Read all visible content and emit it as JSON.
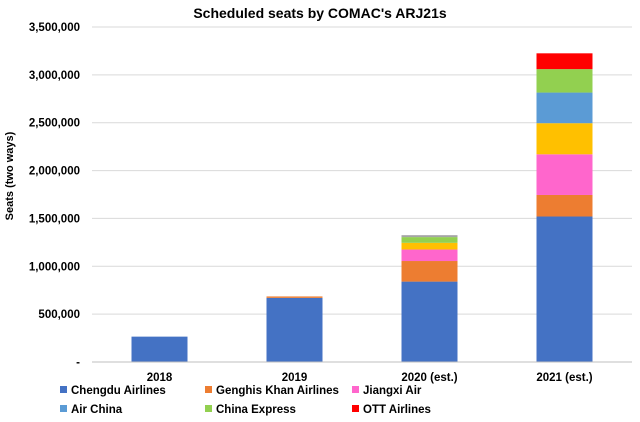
{
  "chart_data": {
    "type": "bar",
    "stacked": true,
    "title": "Scheduled seats by COMAC's ARJ21s",
    "xlabel": "",
    "ylabel": "Seats (two ways)",
    "ylim": [
      0,
      3500000
    ],
    "yticks": [
      0,
      500000,
      1000000,
      1500000,
      2000000,
      2500000,
      3000000,
      3500000
    ],
    "ytick_labels": [
      "-",
      "500,000",
      "1,000,000",
      "1,500,000",
      "2,000,000",
      "2,500,000",
      "3,000,000",
      "3,500,000"
    ],
    "grid": true,
    "legend_position": "bottom",
    "categories": [
      "2018",
      "2019",
      "2020 (est.)",
      "2021 (est.)"
    ],
    "series": [
      {
        "name": "Chengdu Airlines",
        "color": "#4472C4",
        "values": [
          265000,
          670000,
          840000,
          1520000
        ]
      },
      {
        "name": "Genghis Khan Airlines",
        "color": "#ED7D31",
        "values": [
          0,
          15000,
          215000,
          225000
        ]
      },
      {
        "name": "Jiangxi Air",
        "color": "#FF66CC",
        "values": [
          0,
          0,
          120000,
          425000
        ]
      },
      {
        "name": "Air China",
        "color": "#5B9BD5",
        "values": [
          0,
          0,
          0,
          320000
        ]
      },
      {
        "name": "China Express",
        "color": "#92D050",
        "values": [
          0,
          0,
          60000,
          245000
        ]
      },
      {
        "name": "OTT Airlines",
        "color": "#FF0000",
        "values": [
          0,
          0,
          0,
          165000
        ]
      }
    ],
    "extra_segments": [
      {
        "category": "2020 (est.)",
        "after_series": "Jiangxi Air",
        "color": "#FFC000",
        "value": 70000
      },
      {
        "category": "2020 (est.)",
        "after_series": "China Express",
        "color": "#A5A5A5",
        "value": 20000
      },
      {
        "category": "2021 (est.)",
        "after_series": "Jiangxi Air",
        "color": "#FFC000",
        "value": 325000
      }
    ]
  }
}
